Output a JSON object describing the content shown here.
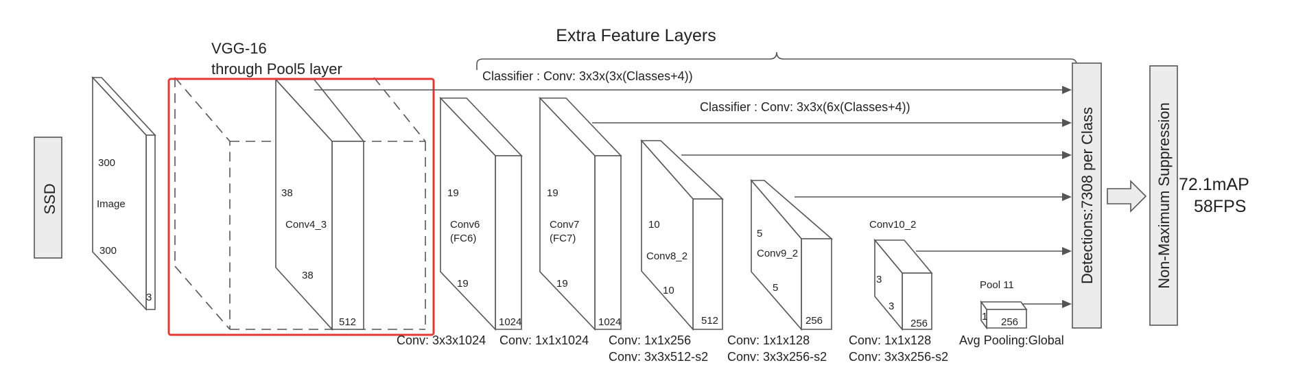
{
  "title": "Extra Feature Layers",
  "vgg_label_1": "VGG-16",
  "vgg_label_2": "through Pool5 layer",
  "classifier_1": "Classifier : Conv: 3x3x(3x(Classes+4))",
  "classifier_2": "Classifier : Conv: 3x3x(6x(Classes+4))",
  "ssd": "SSD",
  "image": {
    "h": "300",
    "label": "Image",
    "w": "300",
    "c": "3"
  },
  "conv4_3": {
    "h": "38",
    "label": "Conv4_3",
    "w": "38",
    "c": "512"
  },
  "conv6": {
    "h": "19",
    "label_1": "Conv6",
    "label_2": "(FC6)",
    "w": "19",
    "c": "1024",
    "op": "Conv: 3x3x1024"
  },
  "conv7": {
    "h": "19",
    "label_1": "Conv7",
    "label_2": "(FC7)",
    "w": "19",
    "c": "1024",
    "op": "Conv: 1x1x1024"
  },
  "conv8_2": {
    "h": "10",
    "label": "Conv8_2",
    "w": "10",
    "c": "512",
    "op_1": "Conv: 1x1x256",
    "op_2": "Conv:  3x3x512-s2"
  },
  "conv9_2": {
    "h": "5",
    "label": "Conv9_2",
    "w": "5",
    "c": "256",
    "op_1": "Conv: 1x1x128",
    "op_2": "Conv: 3x3x256-s2"
  },
  "conv10_2": {
    "label": "Conv10_2",
    "h": "3",
    "w": "3",
    "c": "256",
    "op_1": "Conv: 1x1x128",
    "op_2": "Conv: 3x3x256-s2"
  },
  "pool11": {
    "label": "Pool 11",
    "h": "1",
    "c": "256",
    "op": "Avg Pooling:Global"
  },
  "detections": "Detections:7308  per Class",
  "nms": "Non-Maximum Suppression",
  "result_1": "72.1mAP",
  "result_2": "58FPS",
  "colors": {
    "highlight": "#e53935",
    "box_fill": "#ececec",
    "stroke": "#555555"
  }
}
